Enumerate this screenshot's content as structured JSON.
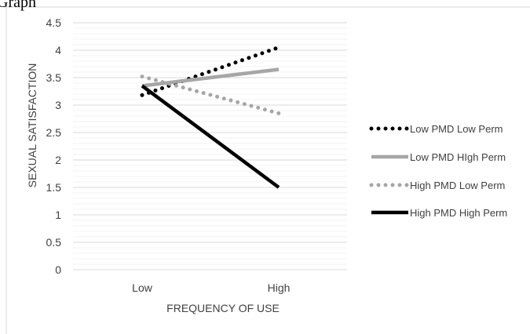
{
  "page_title": "Graph",
  "colors": {
    "grid": "#d9d9d9",
    "axis_text": "#404040",
    "border": "#d9d9d9"
  },
  "chart_data": {
    "type": "line",
    "title": "",
    "xlabel": "FREQUENCY OF USE",
    "ylabel": "SEXUAL SATISFACTION",
    "categories": [
      "Low",
      "High"
    ],
    "ylim": [
      0,
      4.5
    ],
    "y_ticks": [
      "0",
      "0.5",
      "1",
      "1.5",
      "2",
      "2.5",
      "3",
      "3.5",
      "4",
      "4.5"
    ],
    "grid": true,
    "legend_position": "right",
    "series": [
      {
        "name": "Low PMD Low Perm",
        "values": [
          3.18,
          4.05
        ],
        "color": "#000000",
        "style": "dotted"
      },
      {
        "name": "Low PMD HIgh Perm",
        "values": [
          3.35,
          3.65
        ],
        "color": "#a6a6a6",
        "style": "solid"
      },
      {
        "name": "High PMD Low Perm",
        "values": [
          3.52,
          2.85
        ],
        "color": "#a6a6a6",
        "style": "dotted"
      },
      {
        "name": "High PMD High Perm",
        "values": [
          3.35,
          1.5
        ],
        "color": "#000000",
        "style": "solid"
      }
    ]
  }
}
